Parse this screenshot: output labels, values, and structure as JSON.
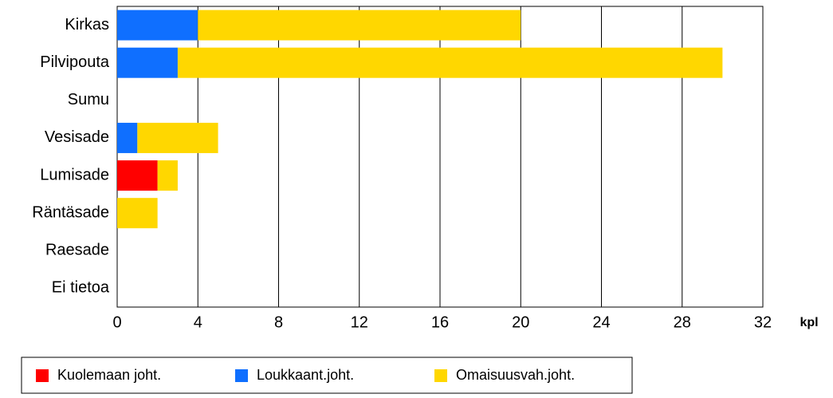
{
  "chart_data": {
    "type": "bar",
    "orientation": "horizontal",
    "stacked": true,
    "categories": [
      "Kirkas",
      "Pilvipouta",
      "Sumu",
      "Vesisade",
      "Lumisade",
      "Räntäsade",
      "Raesade",
      "Ei tietoa"
    ],
    "series": [
      {
        "name": "Kuolemaan joht.",
        "color": "#ff0000",
        "values": [
          0,
          0,
          0,
          0,
          2,
          0,
          0,
          0
        ]
      },
      {
        "name": "Loukkaant.joht.",
        "color": "#0f6fff",
        "values": [
          4,
          3,
          0,
          1,
          0,
          0,
          0,
          0
        ]
      },
      {
        "name": "Omaisuusvah.joht.",
        "color": "#ffd700",
        "values": [
          16,
          27,
          0,
          4,
          1,
          2,
          0,
          0
        ]
      }
    ],
    "xlabel": "kpl",
    "xlim": [
      0,
      32
    ],
    "xticks": [
      0,
      4,
      8,
      12,
      16,
      20,
      24,
      28,
      32
    ],
    "grid": true,
    "legend": "bottom"
  }
}
